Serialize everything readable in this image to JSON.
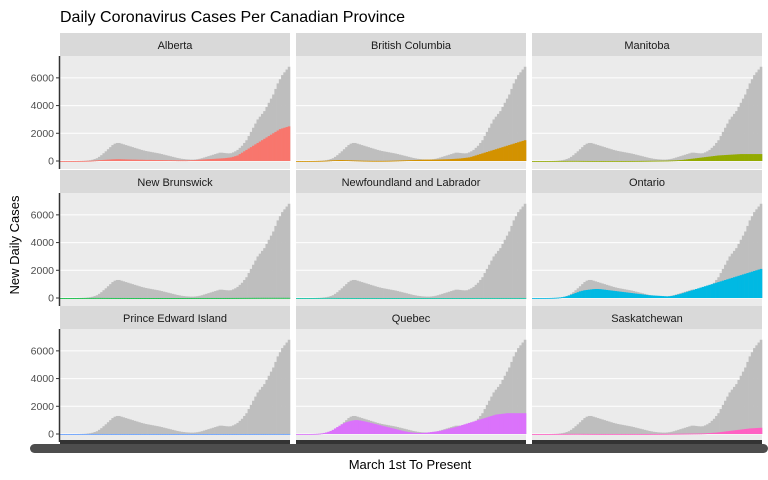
{
  "chart_data": {
    "type": "bar",
    "title": "Daily Coronavirus Cases Per Canadian Province",
    "xlabel": "March 1st To Present",
    "ylabel": "New Daily Cases",
    "ylim": [
      0,
      7000
    ],
    "yticks": [
      0,
      2000,
      4000,
      6000
    ],
    "ytick_labels": [
      "0",
      "2000",
      "4000",
      "6000"
    ],
    "layout": "facet grid 3x3",
    "grid": true,
    "legend": "none",
    "background_series": {
      "description": "Canada total daily cases shown in grey in every panel",
      "color": "#BEBEBE",
      "values": [
        0,
        0,
        0,
        0,
        0,
        0,
        1,
        2,
        4,
        8,
        12,
        20,
        35,
        55,
        90,
        140,
        200,
        300,
        420,
        560,
        700,
        850,
        1000,
        1150,
        1250,
        1300,
        1300,
        1250,
        1200,
        1150,
        1100,
        1050,
        1000,
        950,
        900,
        850,
        800,
        760,
        720,
        690,
        660,
        630,
        600,
        570,
        540,
        500,
        460,
        420,
        380,
        340,
        300,
        260,
        220,
        190,
        160,
        140,
        120,
        110,
        100,
        100,
        110,
        130,
        160,
        200,
        250,
        300,
        350,
        400,
        450,
        500,
        550,
        600,
        600,
        580,
        560,
        550,
        560,
        620,
        700,
        800,
        950,
        1100,
        1300,
        1500,
        1800,
        2100,
        2400,
        2700,
        3000,
        3200,
        3400,
        3600,
        3900,
        4200,
        4500,
        4800,
        5200,
        5600,
        5900,
        6200,
        6400,
        6600,
        6800
      ]
    },
    "panels": [
      {
        "name": "Alberta",
        "color": "#F8766D",
        "values": [
          0,
          0,
          0,
          0,
          0,
          0,
          0,
          1,
          2,
          4,
          6,
          10,
          15,
          20,
          30,
          40,
          50,
          60,
          70,
          80,
          90,
          100,
          110,
          120,
          125,
          130,
          130,
          125,
          120,
          115,
          110,
          105,
          100,
          100,
          95,
          90,
          90,
          85,
          80,
          80,
          80,
          75,
          75,
          70,
          70,
          70,
          65,
          65,
          60,
          60,
          55,
          55,
          50,
          50,
          50,
          50,
          50,
          55,
          60,
          65,
          70,
          80,
          90,
          100,
          110,
          120,
          130,
          140,
          150,
          160,
          170,
          180,
          190,
          200,
          220,
          240,
          260,
          300,
          350,
          400,
          500,
          600,
          700,
          800,
          900,
          1000,
          1100,
          1200,
          1300,
          1400,
          1500,
          1600,
          1700,
          1800,
          1900,
          2000,
          2100,
          2200,
          2300,
          2350,
          2400,
          2450,
          2500
        ]
      },
      {
        "name": "British Columbia",
        "color": "#D39200",
        "values": [
          0,
          0,
          0,
          0,
          0,
          0,
          1,
          2,
          3,
          5,
          8,
          12,
          18,
          25,
          35,
          45,
          55,
          60,
          65,
          70,
          70,
          65,
          60,
          55,
          50,
          45,
          40,
          35,
          30,
          25,
          20,
          18,
          15,
          12,
          10,
          10,
          10,
          10,
          10,
          12,
          14,
          16,
          20,
          25,
          30,
          35,
          40,
          45,
          50,
          55,
          60,
          65,
          70,
          75,
          80,
          85,
          90,
          95,
          100,
          100,
          100,
          100,
          100,
          105,
          110,
          115,
          120,
          125,
          130,
          140,
          150,
          160,
          170,
          180,
          200,
          220,
          240,
          260,
          300,
          350,
          400,
          450,
          500,
          550,
          600,
          650,
          700,
          750,
          800,
          850,
          900,
          950,
          1000,
          1050,
          1100,
          1150,
          1200,
          1250,
          1300,
          1350,
          1400,
          1450,
          1500
        ]
      },
      {
        "name": "Manitoba",
        "color": "#93AA00",
        "values": [
          0,
          0,
          0,
          0,
          0,
          0,
          0,
          0,
          1,
          1,
          2,
          3,
          4,
          5,
          6,
          7,
          8,
          8,
          8,
          8,
          7,
          6,
          5,
          4,
          3,
          2,
          2,
          1,
          1,
          1,
          1,
          1,
          1,
          1,
          1,
          1,
          1,
          1,
          1,
          1,
          1,
          1,
          2,
          2,
          3,
          3,
          4,
          5,
          6,
          8,
          10,
          12,
          14,
          16,
          18,
          20,
          22,
          24,
          26,
          28,
          30,
          35,
          40,
          45,
          50,
          60,
          70,
          80,
          100,
          120,
          140,
          160,
          180,
          200,
          220,
          240,
          260,
          280,
          300,
          320,
          340,
          360,
          380,
          400,
          410,
          420,
          430,
          440,
          450,
          460,
          470,
          480,
          490,
          500,
          500,
          500,
          500,
          500,
          500,
          500,
          500,
          500,
          500
        ]
      },
      {
        "name": "New Brunswick",
        "color": "#00BA38",
        "values": [
          0,
          0,
          0,
          0,
          0,
          0,
          0,
          0,
          1,
          1,
          2,
          2,
          3,
          3,
          4,
          4,
          5,
          5,
          4,
          4,
          3,
          3,
          2,
          2,
          1,
          1,
          1,
          1,
          1,
          1,
          0,
          0,
          0,
          0,
          0,
          0,
          0,
          0,
          0,
          0,
          0,
          0,
          0,
          0,
          0,
          0,
          0,
          0,
          0,
          0,
          0,
          0,
          0,
          0,
          0,
          0,
          1,
          1,
          1,
          1,
          2,
          2,
          2,
          2,
          2,
          2,
          2,
          2,
          2,
          2,
          2,
          2,
          2,
          2,
          2,
          2,
          3,
          3,
          4,
          4,
          5,
          5,
          6,
          6,
          7,
          7,
          8,
          8,
          9,
          9,
          10,
          10,
          10,
          10,
          10,
          10,
          10,
          10,
          10,
          10,
          10,
          10,
          10
        ]
      },
      {
        "name": "Newfoundland and Labrador",
        "color": "#00C19F",
        "values": [
          0,
          0,
          0,
          0,
          0,
          0,
          0,
          0,
          1,
          1,
          2,
          3,
          4,
          5,
          6,
          6,
          5,
          4,
          3,
          2,
          1,
          1,
          1,
          1,
          0,
          0,
          0,
          0,
          0,
          0,
          0,
          0,
          0,
          0,
          0,
          0,
          0,
          0,
          0,
          0,
          0,
          0,
          0,
          0,
          0,
          0,
          0,
          0,
          0,
          0,
          0,
          0,
          0,
          0,
          0,
          0,
          0,
          0,
          0,
          0,
          0,
          0,
          0,
          0,
          0,
          0,
          0,
          0,
          0,
          0,
          0,
          0,
          0,
          0,
          0,
          0,
          0,
          0,
          0,
          0,
          1,
          1,
          1,
          1,
          1,
          1,
          1,
          1,
          1,
          1,
          1,
          1,
          1,
          1,
          1,
          1,
          1,
          1,
          1,
          1,
          1,
          1,
          1
        ]
      },
      {
        "name": "Ontario",
        "color": "#00B9E3",
        "values": [
          0,
          0,
          0,
          0,
          0,
          0,
          1,
          2,
          4,
          8,
          15,
          25,
          40,
          60,
          90,
          130,
          180,
          240,
          300,
          360,
          420,
          480,
          520,
          560,
          580,
          600,
          620,
          640,
          650,
          650,
          640,
          620,
          600,
          580,
          560,
          540,
          520,
          500,
          480,
          460,
          440,
          420,
          400,
          380,
          360,
          340,
          320,
          300,
          280,
          260,
          240,
          220,
          200,
          190,
          180,
          170,
          160,
          150,
          140,
          130,
          120,
          130,
          150,
          180,
          220,
          260,
          300,
          350,
          400,
          450,
          500,
          550,
          600,
          650,
          700,
          750,
          800,
          850,
          900,
          950,
          1000,
          1050,
          1100,
          1150,
          1200,
          1250,
          1300,
          1350,
          1400,
          1450,
          1500,
          1550,
          1600,
          1650,
          1700,
          1750,
          1800,
          1850,
          1900,
          1950,
          2000,
          2050,
          2100
        ]
      },
      {
        "name": "Prince Edward Island",
        "color": "#619CFF",
        "values": [
          0,
          0,
          0,
          0,
          0,
          0,
          0,
          0,
          0,
          1,
          1,
          1,
          1,
          1,
          1,
          1,
          1,
          1,
          1,
          1,
          0,
          0,
          0,
          0,
          0,
          0,
          0,
          0,
          0,
          0,
          0,
          0,
          0,
          0,
          0,
          0,
          0,
          0,
          0,
          0,
          0,
          0,
          0,
          0,
          0,
          0,
          0,
          0,
          0,
          0,
          0,
          0,
          0,
          0,
          0,
          0,
          0,
          0,
          0,
          0,
          0,
          0,
          0,
          0,
          0,
          0,
          0,
          0,
          0,
          0,
          0,
          0,
          0,
          0,
          0,
          0,
          0,
          0,
          0,
          0,
          0,
          0,
          0,
          0,
          0,
          0,
          1,
          1,
          1,
          1,
          1,
          1,
          1,
          1,
          1,
          1,
          1,
          1,
          1,
          1,
          1,
          1,
          1
        ]
      },
      {
        "name": "Quebec",
        "color": "#DB72FB",
        "values": [
          0,
          0,
          0,
          0,
          0,
          0,
          1,
          3,
          6,
          12,
          25,
          45,
          75,
          110,
          160,
          220,
          300,
          400,
          500,
          600,
          700,
          780,
          850,
          900,
          950,
          980,
          1000,
          1000,
          980,
          950,
          920,
          880,
          840,
          800,
          760,
          720,
          680,
          640,
          600,
          560,
          520,
          480,
          440,
          400,
          360,
          320,
          280,
          240,
          200,
          170,
          140,
          120,
          100,
          90,
          80,
          80,
          80,
          90,
          100,
          120,
          140,
          160,
          180,
          200,
          230,
          260,
          300,
          340,
          380,
          420,
          460,
          500,
          550,
          600,
          650,
          700,
          750,
          800,
          850,
          900,
          950,
          1000,
          1050,
          1100,
          1150,
          1200,
          1250,
          1300,
          1350,
          1400,
          1420,
          1440,
          1460,
          1480,
          1500,
          1500,
          1500,
          1500,
          1500,
          1500,
          1500,
          1500,
          1500
        ]
      },
      {
        "name": "Saskatchewan",
        "color": "#FF61C3",
        "values": [
          0,
          0,
          0,
          0,
          0,
          0,
          0,
          0,
          1,
          1,
          2,
          3,
          4,
          5,
          6,
          7,
          8,
          9,
          10,
          10,
          10,
          9,
          8,
          7,
          6,
          5,
          4,
          3,
          3,
          2,
          2,
          2,
          2,
          2,
          2,
          2,
          2,
          2,
          2,
          2,
          2,
          2,
          2,
          2,
          2,
          2,
          2,
          2,
          2,
          2,
          2,
          2,
          3,
          3,
          4,
          4,
          5,
          6,
          7,
          8,
          10,
          12,
          14,
          16,
          18,
          20,
          22,
          24,
          26,
          28,
          30,
          32,
          34,
          36,
          38,
          40,
          45,
          50,
          60,
          70,
          80,
          90,
          100,
          120,
          140,
          160,
          180,
          200,
          220,
          240,
          260,
          280,
          300,
          320,
          340,
          360,
          380,
          400,
          410,
          420,
          430,
          440,
          450
        ]
      }
    ]
  }
}
